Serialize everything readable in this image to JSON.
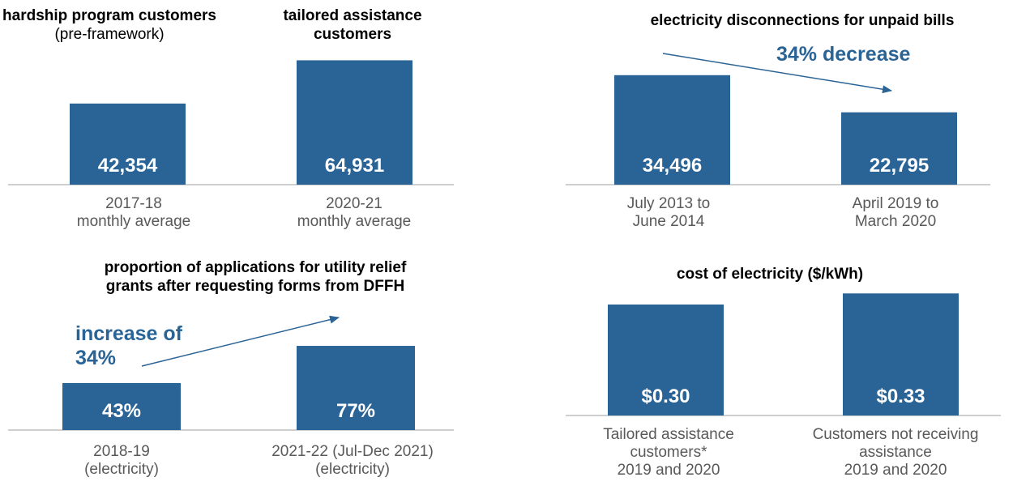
{
  "chart_data": [
    {
      "type": "bar",
      "colors": {
        "bar": "#2a6496",
        "value_label": "#ffffff",
        "category_label": "#595959",
        "axis": "#bfbfbf"
      },
      "groups": [
        {
          "title": "hardship program customers",
          "subtitle": "(pre-framework)"
        },
        {
          "title": "tailored assistance customers",
          "subtitle": ""
        }
      ],
      "categories": [
        {
          "line1": "2017-18",
          "line2": "monthly average"
        },
        {
          "line1": "2020-21",
          "line2": "monthly average"
        }
      ],
      "values": [
        42354,
        64931
      ],
      "value_labels": [
        "42,354",
        "64,931"
      ],
      "ylim": [
        0,
        74000
      ]
    },
    {
      "type": "bar",
      "colors": {
        "bar": "#2a6496",
        "value_label": "#ffffff",
        "category_label": "#595959",
        "axis": "#bfbfbf",
        "annotation": "#2a6496"
      },
      "title": "electricity disconnections for unpaid bills",
      "annotation": "34% decrease",
      "categories": [
        {
          "line1": "July 2013 to",
          "line2": "June 2014"
        },
        {
          "line1": "April 2019 to",
          "line2": "March 2020"
        }
      ],
      "values": [
        34496,
        22795
      ],
      "value_labels": [
        "34,496",
        "22,795"
      ],
      "ylim": [
        0,
        37000
      ]
    },
    {
      "type": "bar",
      "colors": {
        "bar": "#2a6496",
        "value_label": "#ffffff",
        "category_label": "#595959",
        "axis": "#bfbfbf",
        "annotation": "#2a6496"
      },
      "title_lines": [
        "proportion of applications for utility relief",
        "grants after requesting forms from DFFH"
      ],
      "annotation_lines": [
        "increase of",
        "34%"
      ],
      "categories": [
        {
          "line1": "2018-19",
          "line2": "(electricity)"
        },
        {
          "line1": "2021-22 (Jul-Dec 2021)",
          "line2": "(electricity)"
        }
      ],
      "values": [
        43,
        77
      ],
      "value_labels": [
        "43%",
        "77%"
      ],
      "ylim": [
        0,
        100
      ]
    },
    {
      "type": "bar",
      "colors": {
        "bar": "#2a6496",
        "value_label": "#ffffff",
        "category_label": "#595959",
        "axis": "#bfbfbf"
      },
      "title": "cost of electricity ($/kWh)",
      "categories": [
        {
          "lines": [
            "Tailored assistance",
            "customers*",
            "2019 and 2020"
          ]
        },
        {
          "lines": [
            "Customers not receiving",
            "assistance",
            "2019 and 2020"
          ]
        }
      ],
      "values": [
        0.3,
        0.33
      ],
      "value_labels": [
        "$0.30",
        "$0.33"
      ],
      "ylim": [
        0,
        0.335
      ]
    }
  ]
}
